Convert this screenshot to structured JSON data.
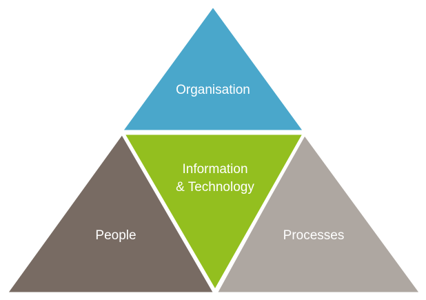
{
  "diagram": {
    "top": {
      "label": "Organisation",
      "color": "#4aa7cb"
    },
    "center": {
      "line1": "Information",
      "line2": "& Technology",
      "color": "#93bf1f"
    },
    "left": {
      "label": "People",
      "color": "#786b63"
    },
    "right": {
      "label": "Processes",
      "color": "#aea7a1"
    }
  }
}
